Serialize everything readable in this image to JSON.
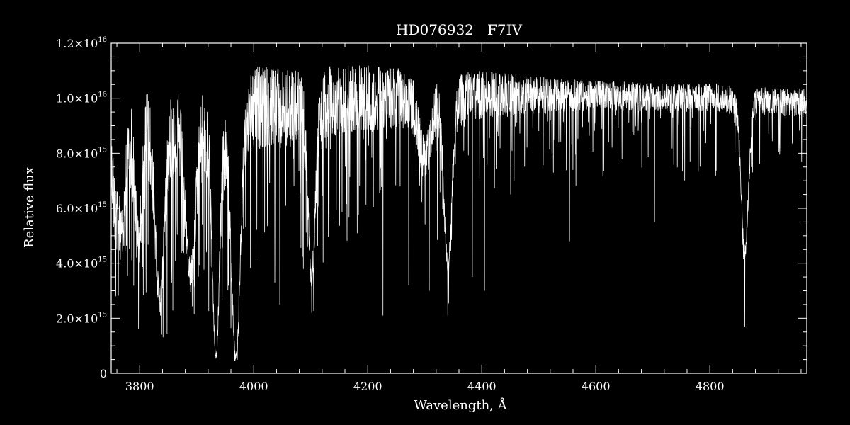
{
  "chart_data": {
    "type": "line",
    "title": "HD076932   F7IV",
    "xlabel": "Wavelength, Å",
    "ylabel": "Relative flux",
    "xlim": [
      3750,
      4970
    ],
    "ylim": [
      0,
      1.2e+16
    ],
    "grid": false,
    "background": "#000000",
    "line_color": "#ffffff",
    "x_ticks": [
      {
        "value": 3800,
        "label": "3800"
      },
      {
        "value": 4000,
        "label": "4000"
      },
      {
        "value": 4200,
        "label": "4200"
      },
      {
        "value": 4400,
        "label": "4400"
      },
      {
        "value": 4600,
        "label": "4600"
      },
      {
        "value": 4800,
        "label": "4800"
      }
    ],
    "y_ticks": [
      {
        "value": 0,
        "mantissa": "0",
        "exponent": ""
      },
      {
        "value": 2000000000000000.0,
        "mantissa": "2.0×10",
        "exponent": "15"
      },
      {
        "value": 4000000000000000.0,
        "mantissa": "4.0×10",
        "exponent": "15"
      },
      {
        "value": 6000000000000000.0,
        "mantissa": "6.0×10",
        "exponent": "15"
      },
      {
        "value": 8000000000000000.0,
        "mantissa": "8.0×10",
        "exponent": "15"
      },
      {
        "value": 1e+16,
        "mantissa": "1.0×10",
        "exponent": "16"
      },
      {
        "value": 1.2e+16,
        "mantissa": "1.2×10",
        "exponent": "16"
      }
    ],
    "series": [
      {
        "values_unit": "relative flux",
        "continuum": {
          "x": [
            3750,
            3780,
            3800,
            3850,
            3900,
            3950,
            4000,
            4050,
            4100,
            4150,
            4200,
            4250,
            4300,
            4350,
            4400,
            4450,
            4500,
            4550,
            4600,
            4650,
            4700,
            4750,
            4800,
            4850,
            4900,
            4970
          ],
          "y": [
            9600000000000000.0,
            1e+16,
            1.05e+16,
            1.05e+16,
            1.05e+16,
            1.02e+16,
            1.12e+16,
            1.11e+16,
            1.09e+16,
            1.13e+16,
            1.12e+16,
            1.11e+16,
            1.1e+16,
            1.09e+16,
            1.1e+16,
            1.09e+16,
            1.08e+16,
            1.07e+16,
            1.065e+16,
            1.06e+16,
            1.055e+16,
            1.05e+16,
            1.06e+16,
            1.04e+16,
            1.04e+16,
            1.035e+16
          ]
        },
        "broad_features": [
          {
            "x": 3760,
            "depth": 0.3,
            "width": 8
          },
          {
            "x": 3770,
            "depth": 0.35,
            "width": 6
          },
          {
            "x": 3798,
            "depth": 0.45,
            "width": 8
          },
          {
            "x": 3835,
            "depth": 0.7,
            "width": 11
          },
          {
            "x": 3889,
            "depth": 0.6,
            "width": 12
          },
          {
            "x": 3933.7,
            "depth": 0.93,
            "width": 9
          },
          {
            "x": 3968.5,
            "depth": 0.93,
            "width": 11
          },
          {
            "x": 4101.7,
            "depth": 0.62,
            "width": 9
          },
          {
            "x": 4300,
            "depth": 0.22,
            "width": 14
          },
          {
            "x": 4340.5,
            "depth": 0.6,
            "width": 10
          },
          {
            "x": 4861.3,
            "depth": 0.55,
            "width": 9
          }
        ],
        "deep_lines": [
          {
            "x": 3838,
            "y": 1400000000000000.0
          },
          {
            "x": 3933.7,
            "y": 700000000000000.0
          },
          {
            "x": 3968.5,
            "y": 700000000000000.0
          },
          {
            "x": 4045.8,
            "y": 2500000000000000.0
          },
          {
            "x": 4101.7,
            "y": 2200000000000000.0
          },
          {
            "x": 4226.7,
            "y": 2100000000000000.0
          },
          {
            "x": 4271.8,
            "y": 3200000000000000.0
          },
          {
            "x": 4307.9,
            "y": 3000000000000000.0
          },
          {
            "x": 4340.5,
            "y": 2100000000000000.0
          },
          {
            "x": 4383.5,
            "y": 3500000000000000.0
          },
          {
            "x": 4404.8,
            "y": 3000000000000000.0
          },
          {
            "x": 4554.0,
            "y": 4800000000000000.0
          },
          {
            "x": 4703.0,
            "y": 5500000000000000.0
          },
          {
            "x": 4861.3,
            "y": 1700000000000000.0
          }
        ]
      }
    ]
  }
}
